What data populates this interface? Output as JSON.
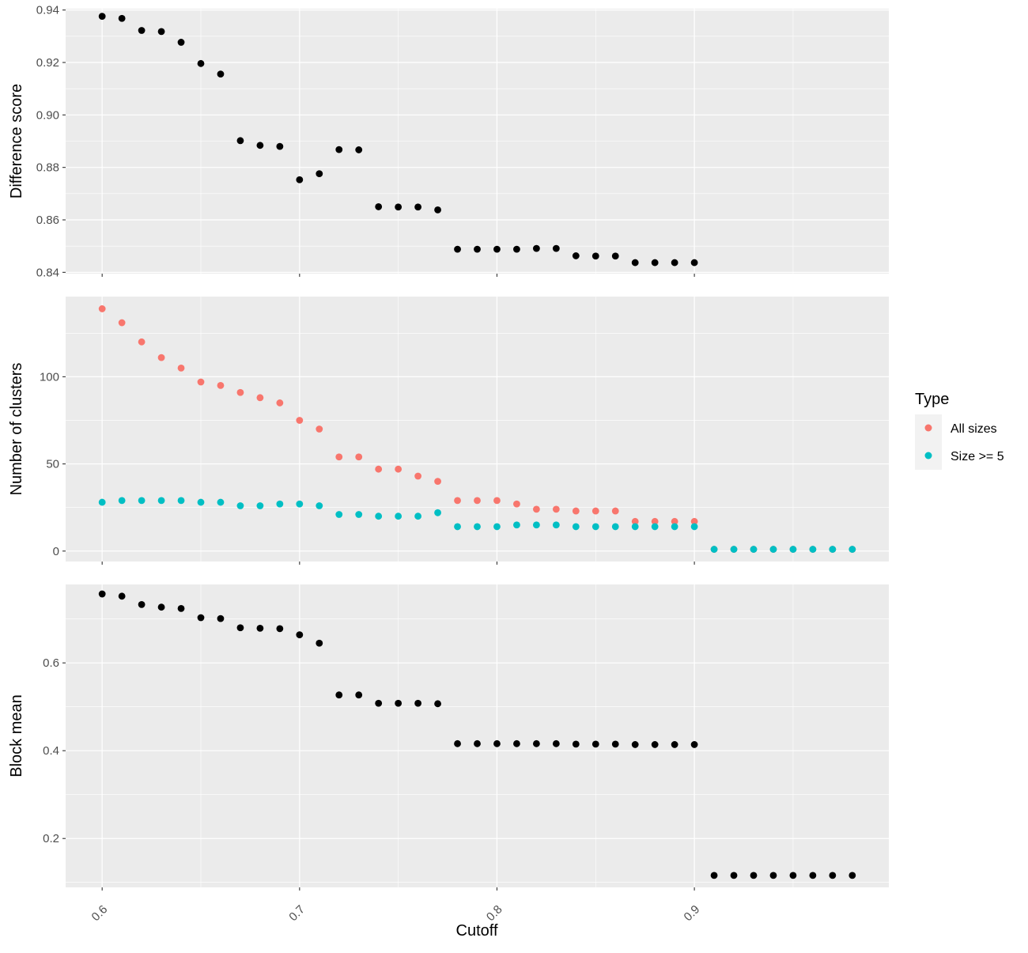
{
  "chart_data": [
    {
      "type": "scatter",
      "ylabel": "Difference score",
      "ylim": [
        0.8395,
        0.9405
      ],
      "yticks": [
        0.84,
        0.86,
        0.88,
        0.9,
        0.92,
        0.94
      ],
      "ytick_labels": [
        "0.84",
        "0.86",
        "0.88",
        "0.90",
        "0.92",
        "0.94"
      ],
      "grid": true,
      "series": [
        {
          "color": "#000000",
          "x": [
            0.6,
            0.61,
            0.62,
            0.63,
            0.64,
            0.65,
            0.66,
            0.67,
            0.68,
            0.69,
            0.7,
            0.71,
            0.72,
            0.73,
            0.74,
            0.75,
            0.76,
            0.77,
            0.78,
            0.79,
            0.8,
            0.81,
            0.82,
            0.83,
            0.84,
            0.85,
            0.86,
            0.87,
            0.88,
            0.89,
            0.9
          ],
          "y": [
            0.9376,
            0.9368,
            0.9322,
            0.9318,
            0.9277,
            0.9196,
            0.9156,
            0.8902,
            0.8884,
            0.888,
            0.8753,
            0.8776,
            0.8868,
            0.8867,
            0.865,
            0.8649,
            0.8649,
            0.8638,
            0.8488,
            0.8488,
            0.8488,
            0.8488,
            0.8491,
            0.8491,
            0.8463,
            0.8462,
            0.8462,
            0.8437,
            0.8437,
            0.8437,
            0.8437
          ]
        }
      ]
    },
    {
      "type": "scatter",
      "ylabel": "Number of clusters",
      "ylim": [
        -6,
        146
      ],
      "yticks": [
        0,
        50,
        100
      ],
      "ytick_labels": [
        "0",
        "50",
        "100"
      ],
      "grid": true,
      "series": [
        {
          "name": "All sizes",
          "color": "#F8766D",
          "x": [
            0.6,
            0.61,
            0.62,
            0.63,
            0.64,
            0.65,
            0.66,
            0.67,
            0.68,
            0.69,
            0.7,
            0.71,
            0.72,
            0.73,
            0.74,
            0.75,
            0.76,
            0.77,
            0.78,
            0.79,
            0.8,
            0.81,
            0.82,
            0.83,
            0.84,
            0.85,
            0.86,
            0.87,
            0.88,
            0.89,
            0.9,
            0.91,
            0.92,
            0.93,
            0.94,
            0.95,
            0.96,
            0.97,
            0.98
          ],
          "y": [
            139,
            131,
            120,
            111,
            105,
            97,
            95,
            91,
            88,
            85,
            75,
            70,
            54,
            54,
            47,
            47,
            43,
            40,
            29,
            29,
            29,
            27,
            24,
            24,
            23,
            23,
            23,
            17,
            17,
            17,
            17,
            1,
            1,
            1,
            1,
            1,
            1,
            1,
            1
          ]
        },
        {
          "name": "Size >= 5",
          "color": "#00BFC4",
          "x": [
            0.6,
            0.61,
            0.62,
            0.63,
            0.64,
            0.65,
            0.66,
            0.67,
            0.68,
            0.69,
            0.7,
            0.71,
            0.72,
            0.73,
            0.74,
            0.75,
            0.76,
            0.77,
            0.78,
            0.79,
            0.8,
            0.81,
            0.82,
            0.83,
            0.84,
            0.85,
            0.86,
            0.87,
            0.88,
            0.89,
            0.9,
            0.91,
            0.92,
            0.93,
            0.94,
            0.95,
            0.96,
            0.97,
            0.98
          ],
          "y": [
            28,
            29,
            29,
            29,
            29,
            28,
            28,
            26,
            26,
            27,
            27,
            26,
            21,
            21,
            20,
            20,
            20,
            22,
            14,
            14,
            14,
            15,
            15,
            15,
            14,
            14,
            14,
            14,
            14,
            14,
            14,
            1,
            1,
            1,
            1,
            1,
            1,
            1,
            1
          ]
        }
      ]
    },
    {
      "type": "scatter",
      "ylabel": "Block mean",
      "ylim": [
        0.0887,
        0.7787
      ],
      "yticks": [
        0.2,
        0.4,
        0.6
      ],
      "ytick_labels": [
        "0.2",
        "0.4",
        "0.6"
      ],
      "grid": true,
      "series": [
        {
          "color": "#000000",
          "x": [
            0.6,
            0.61,
            0.62,
            0.63,
            0.64,
            0.65,
            0.66,
            0.67,
            0.68,
            0.69,
            0.7,
            0.71,
            0.72,
            0.73,
            0.74,
            0.75,
            0.76,
            0.77,
            0.78,
            0.79,
            0.8,
            0.81,
            0.82,
            0.83,
            0.84,
            0.85,
            0.86,
            0.87,
            0.88,
            0.89,
            0.9,
            0.91,
            0.92,
            0.93,
            0.94,
            0.95,
            0.96,
            0.97,
            0.98
          ],
          "y": [
            0.757,
            0.752,
            0.733,
            0.727,
            0.724,
            0.703,
            0.701,
            0.68,
            0.679,
            0.678,
            0.664,
            0.645,
            0.527,
            0.527,
            0.508,
            0.508,
            0.508,
            0.507,
            0.416,
            0.416,
            0.416,
            0.416,
            0.416,
            0.416,
            0.415,
            0.415,
            0.415,
            0.414,
            0.414,
            0.414,
            0.414,
            0.116,
            0.116,
            0.116,
            0.116,
            0.116,
            0.116,
            0.116,
            0.116
          ]
        }
      ]
    }
  ],
  "x_axis": {
    "title": "Cutoff",
    "xlim": [
      0.5815,
      0.9985
    ],
    "ticks": [
      0.6,
      0.7,
      0.8,
      0.9
    ],
    "tick_labels": [
      "0.6",
      "0.7",
      "0.8",
      "0.9"
    ]
  },
  "legend": {
    "title": "Type",
    "placement": "right",
    "items": [
      {
        "label": "All sizes",
        "color": "#F8766D"
      },
      {
        "label": "Size >= 5",
        "color": "#00BFC4"
      }
    ]
  },
  "theme": {
    "panel_background": "#EBEBEB",
    "grid_color": "#FFFFFF",
    "tick_color": "#333333"
  }
}
